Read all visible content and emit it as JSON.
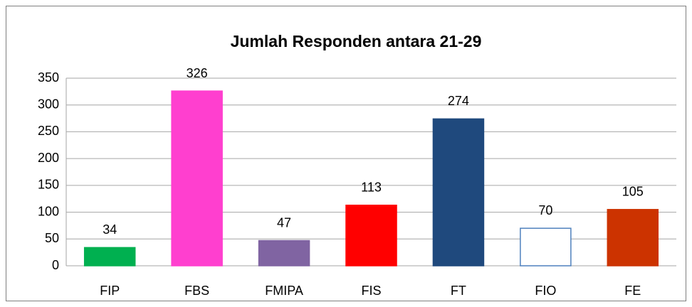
{
  "chart_data": {
    "type": "bar",
    "title": "Jumlah Responden antara 21-29",
    "categories": [
      "FIP",
      "FBS",
      "FMIPA",
      "FIS",
      "FT",
      "FIO",
      "FE"
    ],
    "values": [
      34,
      326,
      47,
      113,
      274,
      70,
      105
    ],
    "colors": [
      "#00b050",
      "#ff3fcf",
      "#8064a2",
      "#ff0000",
      "#1f497d",
      "#ffffff",
      "#cc3300"
    ],
    "edgecolors": [
      "#00b050",
      "#ff3fcf",
      "#8064a2",
      "#ff0000",
      "#1f497d",
      "#4f81bd",
      "#cc3300"
    ],
    "ylim": [
      0,
      350
    ],
    "yticks": [
      0,
      50,
      100,
      150,
      200,
      250,
      300,
      350
    ],
    "grid": true
  }
}
